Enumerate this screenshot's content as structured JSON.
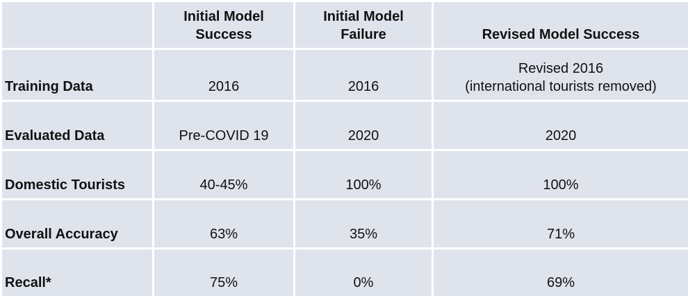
{
  "table": {
    "headers": [
      "",
      [
        "Initial Model",
        "Success"
      ],
      [
        "Initial Model",
        "Failure"
      ],
      [
        "Revised Model Success"
      ]
    ],
    "rows": [
      {
        "label": "Training Data",
        "cells": [
          [
            "2016"
          ],
          [
            "2016"
          ],
          [
            "Revised 2016",
            "(international tourists removed)"
          ]
        ]
      },
      {
        "label": "Evaluated Data",
        "cells": [
          [
            "Pre-COVID 19"
          ],
          [
            "2020"
          ],
          [
            "2020"
          ]
        ]
      },
      {
        "label": "Domestic Tourists",
        "cells": [
          [
            "40-45%"
          ],
          [
            "100%"
          ],
          [
            "100%"
          ]
        ]
      },
      {
        "label": "Overall Accuracy",
        "cells": [
          [
            "63%"
          ],
          [
            "35%"
          ],
          [
            "71%"
          ]
        ]
      },
      {
        "label": "Recall*",
        "cells": [
          [
            "75%"
          ],
          [
            "0%"
          ],
          [
            "69%"
          ]
        ]
      }
    ]
  }
}
